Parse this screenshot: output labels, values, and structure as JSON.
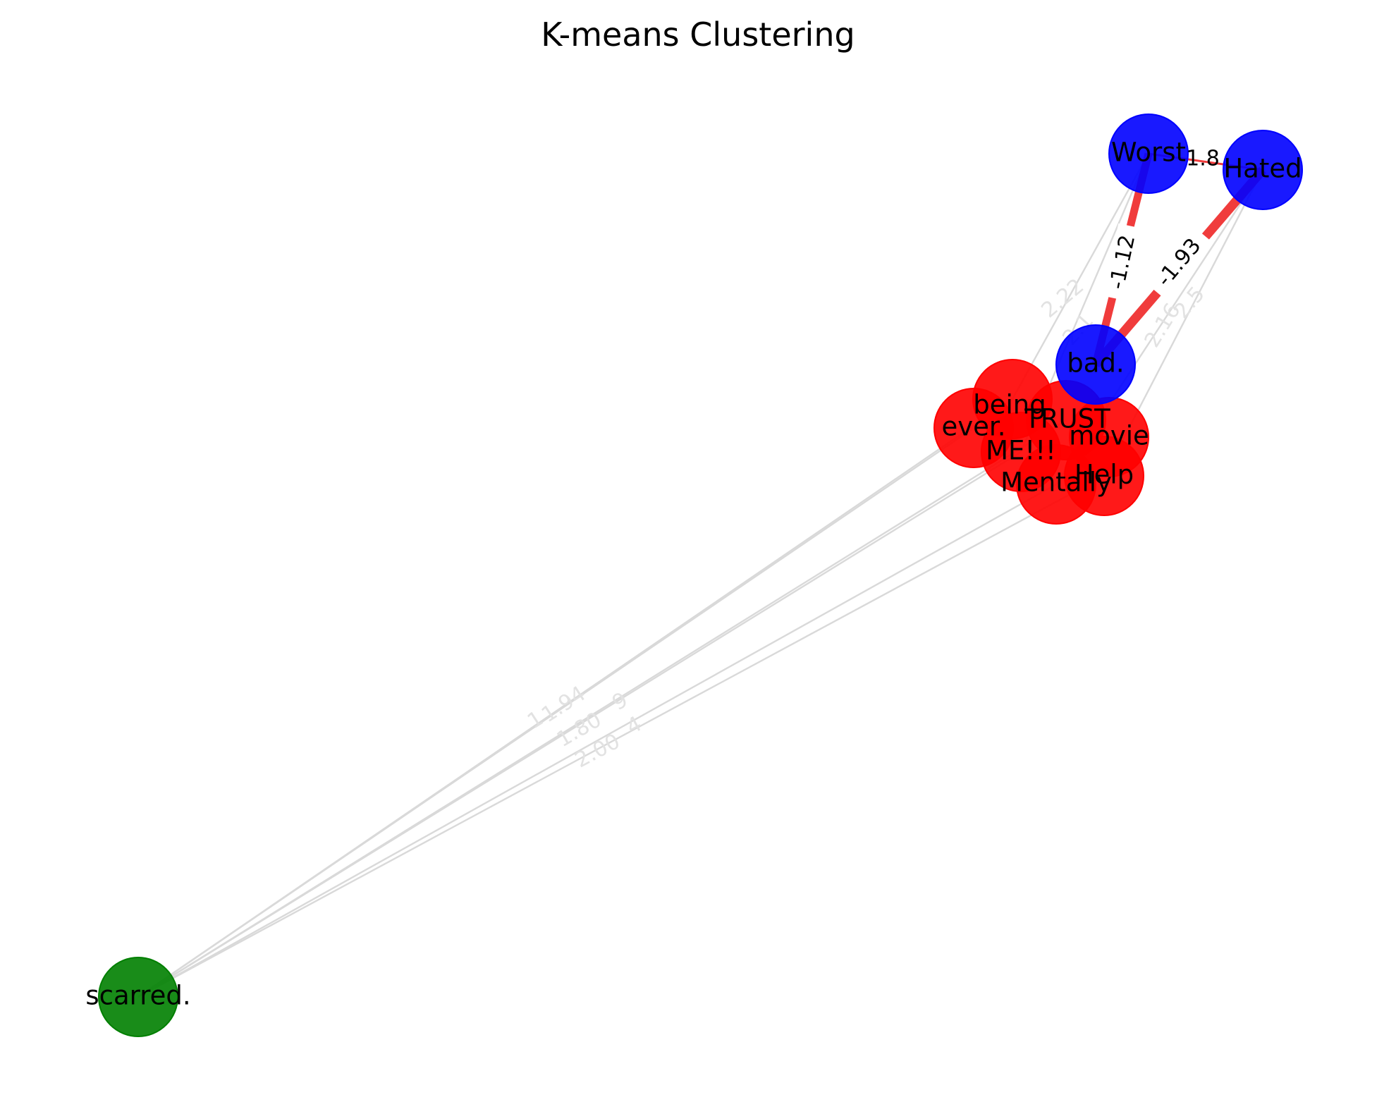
{
  "title": "K-means Clustering",
  "colors": {
    "cluster_0": "#ff0000",
    "cluster_1": "#0000ff",
    "cluster_2": "#007f00",
    "strong_edge": "#f03c3c",
    "weak_edge": "#d9d9d9",
    "weak_label": "#e2e2e2"
  },
  "nodes": [
    {
      "id": "scarred",
      "label": "scarred.",
      "cluster": 2
    },
    {
      "id": "worst",
      "label": "Worst",
      "cluster": 1
    },
    {
      "id": "hated",
      "label": "Hated",
      "cluster": 1
    },
    {
      "id": "bad",
      "label": "bad.",
      "cluster": 1
    },
    {
      "id": "being",
      "label": "being",
      "cluster": 0
    },
    {
      "id": "ever",
      "label": "ever.",
      "cluster": 0
    },
    {
      "id": "trust",
      "label": "TRUST",
      "cluster": 0
    },
    {
      "id": "movie",
      "label": "movie",
      "cluster": 0
    },
    {
      "id": "me",
      "label": "ME!!!",
      "cluster": 0
    },
    {
      "id": "help",
      "label": "Help",
      "cluster": 0
    },
    {
      "id": "mentally",
      "label": "Mentally",
      "cluster": 0
    }
  ],
  "strong_edges": [
    {
      "source": "worst",
      "target": "bad",
      "label": "-1.12"
    },
    {
      "source": "hated",
      "target": "bad",
      "label": "-1.93"
    },
    {
      "source": "worst",
      "target": "hated",
      "label": "1.8"
    }
  ],
  "weak_edges": [
    {
      "source": "scarred",
      "target": "ever",
      "label": "1.94"
    },
    {
      "source": "scarred",
      "target": "being",
      "label": "1"
    },
    {
      "source": "scarred",
      "target": "me",
      "label": "1.80"
    },
    {
      "source": "scarred",
      "target": "trust",
      "label": "9"
    },
    {
      "source": "scarred",
      "target": "mentally",
      "label": "2.00"
    },
    {
      "source": "scarred",
      "target": "help",
      "label": "4"
    },
    {
      "source": "being",
      "target": "worst",
      "label": "2.22"
    },
    {
      "source": "me",
      "target": "worst",
      "label": "2.1"
    },
    {
      "source": "help",
      "target": "hated",
      "label": "2.16"
    },
    {
      "source": "mentally",
      "target": "hated",
      "label": "2.5"
    }
  ]
}
